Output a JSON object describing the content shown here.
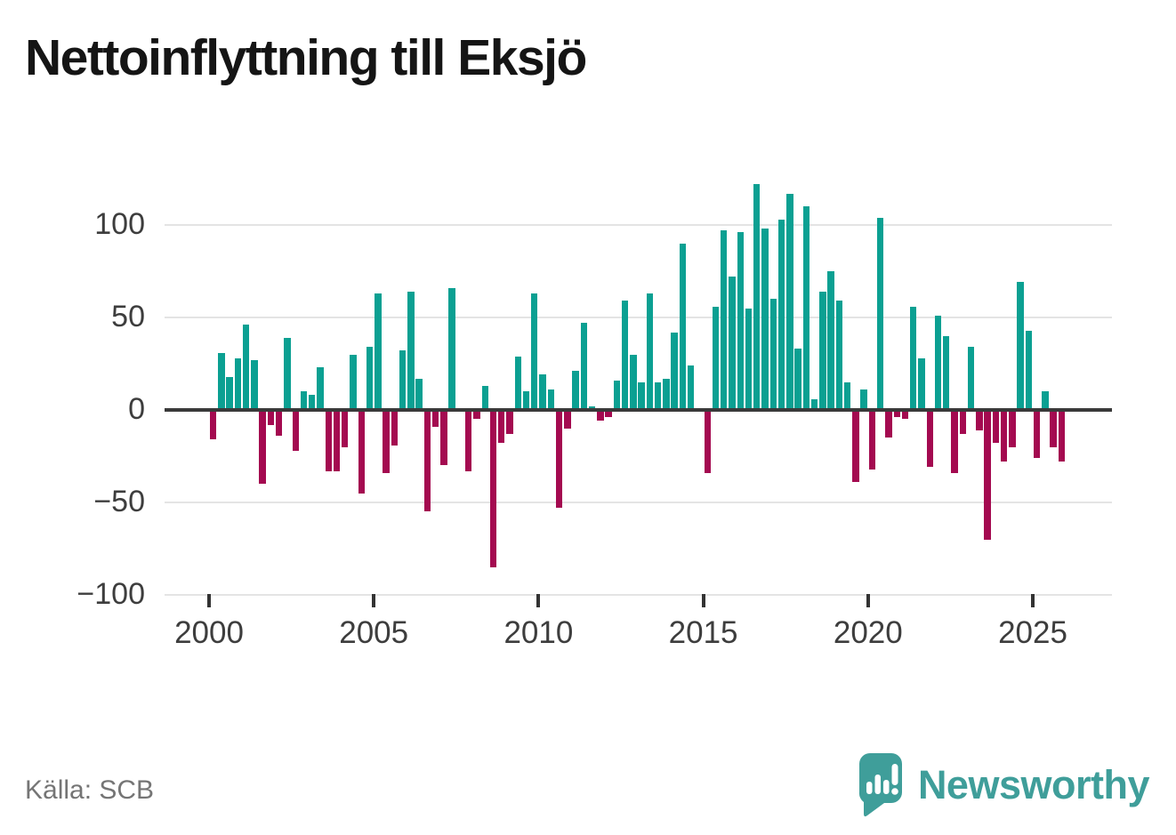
{
  "title": "Nettoinflyttning till Eksjö",
  "source": "Källa: SCB",
  "brand": {
    "name": "Newsworthy",
    "color": "#3f9e9a"
  },
  "colors": {
    "positive": "#0ba092",
    "negative": "#a40a50",
    "grid": "#e4e4e4",
    "zero_line": "#3a3a3a",
    "axis_text": "#3d3d3d",
    "source_text": "#757575",
    "title_text": "#151515"
  },
  "chart_data": {
    "type": "bar",
    "title": "Nettoinflyttning till Eksjö",
    "xlabel": "",
    "ylabel": "",
    "frequency": "quarterly",
    "start_year": 2000,
    "grid": "horizontal",
    "legend": "none",
    "ylim": [
      -100,
      130
    ],
    "y_ticks": [
      100,
      50,
      0,
      -50,
      -100
    ],
    "x_tick_years": [
      2000,
      2005,
      2010,
      2015,
      2020,
      2025
    ],
    "values": [
      -16,
      31,
      18,
      28,
      46,
      27,
      -40,
      -8,
      -14,
      39,
      -22,
      10,
      8,
      23,
      -33,
      -33,
      -20,
      30,
      -45,
      34,
      63,
      -34,
      -19,
      32,
      64,
      17,
      -55,
      -9,
      -30,
      66,
      0,
      -33,
      -5,
      13,
      -85,
      -18,
      -13,
      29,
      10,
      63,
      19,
      11,
      -53,
      -10,
      21,
      47,
      2,
      -6,
      -4,
      16,
      59,
      30,
      15,
      63,
      15,
      17,
      42,
      90,
      24,
      0,
      -34,
      56,
      97,
      72,
      96,
      55,
      122,
      98,
      60,
      103,
      117,
      33,
      110,
      6,
      64,
      75,
      59,
      15,
      -39,
      11,
      -32,
      104,
      -15,
      -4,
      -5,
      56,
      28,
      -31,
      51,
      40,
      -34,
      -13,
      34,
      -11,
      -70,
      -18,
      -28,
      -20,
      69,
      43,
      -26,
      10,
      -20,
      -28
    ]
  }
}
